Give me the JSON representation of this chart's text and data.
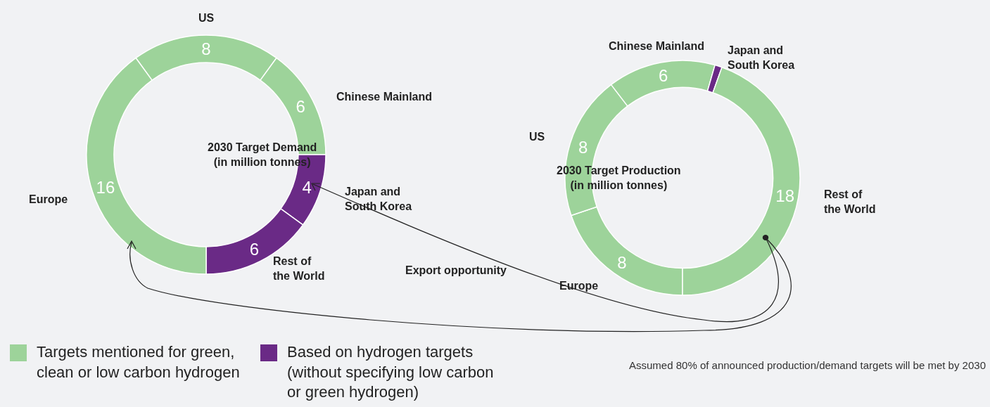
{
  "chart_data": [
    {
      "type": "donut",
      "title": "2030 Target Demand\n(in million tonnes)",
      "categories": [
        "US",
        "Chinese Mainland",
        "Japan and\nSouth Korea",
        "Rest of\nthe World",
        "Europe"
      ],
      "values": [
        8,
        6,
        4,
        6,
        16
      ],
      "colors": [
        "#9dd39a",
        "#9dd39a",
        "#6a2a86",
        "#6a2a86",
        "#9dd39a"
      ],
      "data_labels": true,
      "annotations": [
        "Targets mentioned for green,\nclean or low carbon hydrogen",
        "Based on hydrogen targets\n(without specifying low carbon\nor green hydrogen)",
        "Export opportunity"
      ]
    },
    {
      "type": "donut",
      "title": "2030 Target Production\n(in million tonnes)",
      "categories": [
        "Europe",
        "US",
        "Chinese Mainland",
        "Japan and\nSouth Korea",
        "Rest of\nthe World"
      ],
      "values": [
        8,
        8,
        6,
        0.4,
        18
      ],
      "value_labels": [
        "8",
        "8",
        "6",
        null,
        "18"
      ],
      "colors": [
        "#9dd39a",
        "#9dd39a",
        "#9dd39a",
        "#6a2a86",
        "#9dd39a"
      ],
      "annotations": [
        "Assumed 80% of announced production/demand targets will be met by 2030"
      ]
    }
  ]
}
